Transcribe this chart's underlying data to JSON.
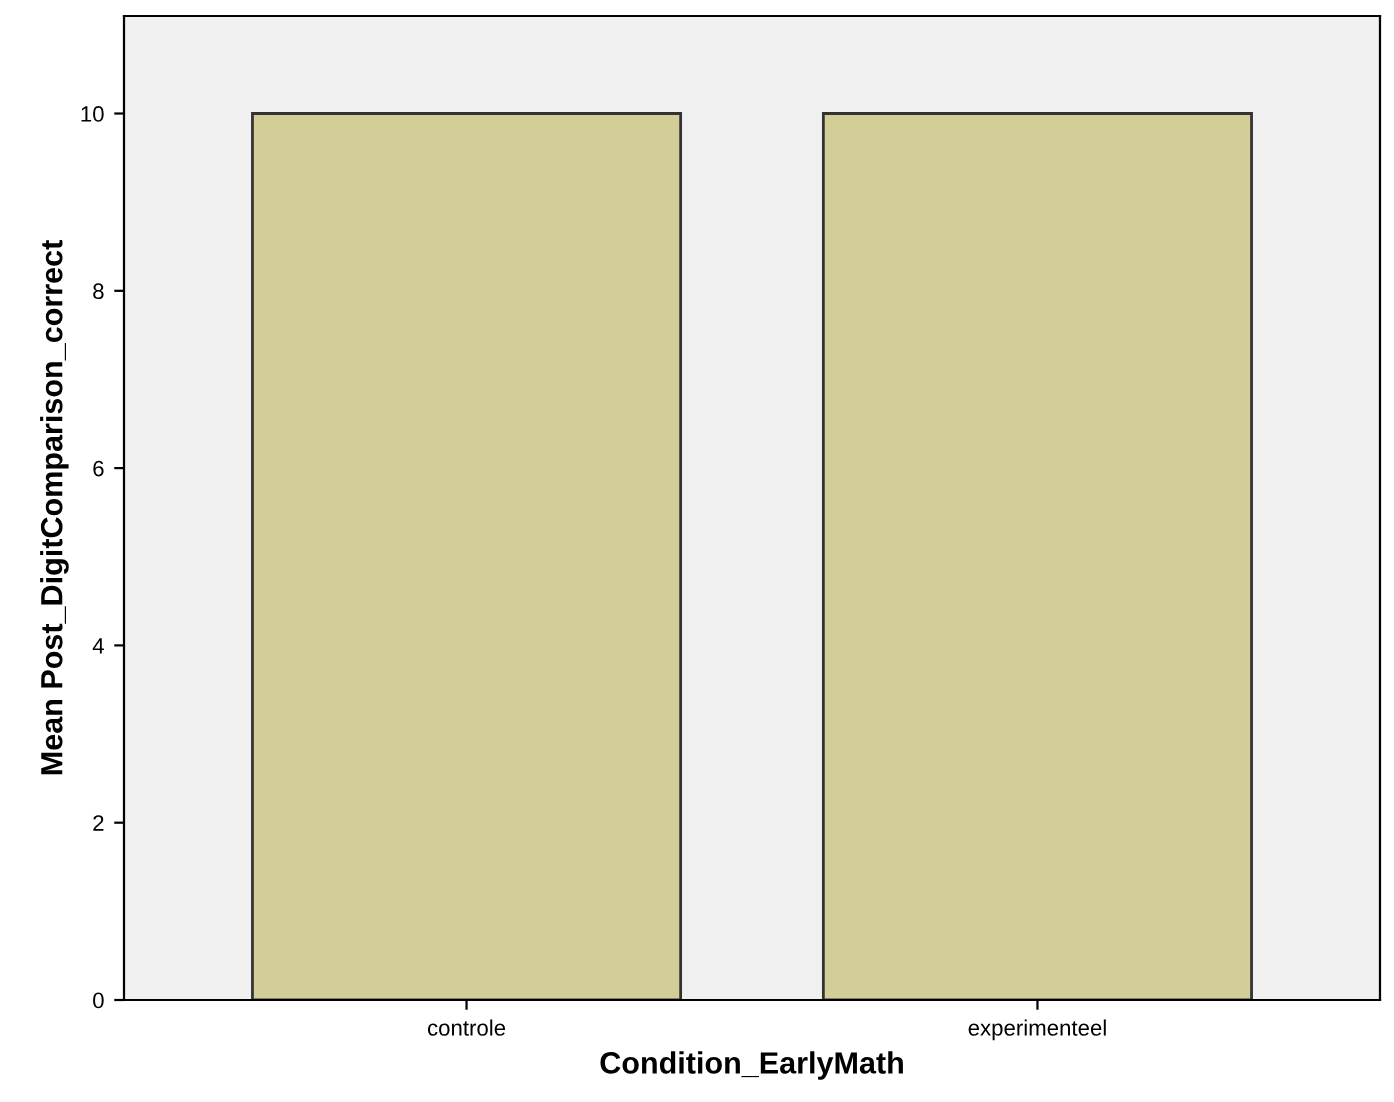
{
  "chart_data": {
    "type": "bar",
    "xlabel": "Condition_EarlyMath",
    "ylabel": "Mean Post_DigitComparison_correct",
    "categories": [
      "controle",
      "experimenteel"
    ],
    "values": [
      10,
      10
    ],
    "color": "#d3ce97",
    "ylim": [
      0,
      11.1
    ],
    "yticks": [
      0,
      2,
      4,
      6,
      8,
      10
    ],
    "grid": false
  }
}
